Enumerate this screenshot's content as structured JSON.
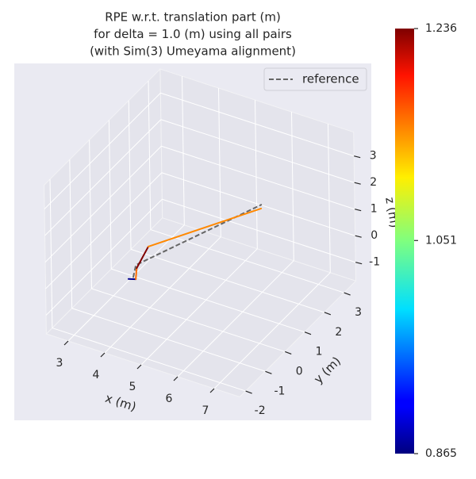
{
  "chart_data": {
    "type": "line3d",
    "title": [
      "RPE w.r.t. translation part (m)",
      "for delta = 1.0 (m) using all pairs",
      "(with Sim(3) Umeyama alignment)"
    ],
    "xlabel": "x (m)",
    "ylabel": "y (m)",
    "zlabel": "z (m)",
    "xlim": [
      2.4,
      7.7
    ],
    "ylim": [
      -2.3,
      3.6
    ],
    "zlim": [
      -1.7,
      3.9
    ],
    "xticks": [
      3,
      4,
      5,
      6,
      7
    ],
    "yticks": [
      -2,
      -1,
      0,
      1,
      2,
      3
    ],
    "zticks": [
      -1,
      0,
      1,
      2,
      3
    ],
    "grid": true,
    "legend": "upper right",
    "series": [
      {
        "name": "reference",
        "color": "#666666",
        "dashed": true,
        "x": [
          3.55,
          3.63,
          7.12
        ],
        "y": [
          0,
          0,
          0
        ],
        "z": [
          -0.77,
          -0.26,
          3.58
        ]
      },
      {
        "colormap": "jet",
        "x": [
          3.42,
          3.62,
          3.65,
          3.98,
          7.1
        ],
        "y": [
          0,
          0,
          0,
          0,
          0
        ],
        "z": [
          -0.88,
          -0.8,
          -0.37,
          0.59,
          3.42
        ],
        "segment_values": [
          0.87,
          1.15,
          1.236,
          1.14
        ]
      }
    ],
    "clim": [
      0.865,
      1.236
    ],
    "cticks": [
      0.865,
      1.051,
      1.236
    ]
  }
}
